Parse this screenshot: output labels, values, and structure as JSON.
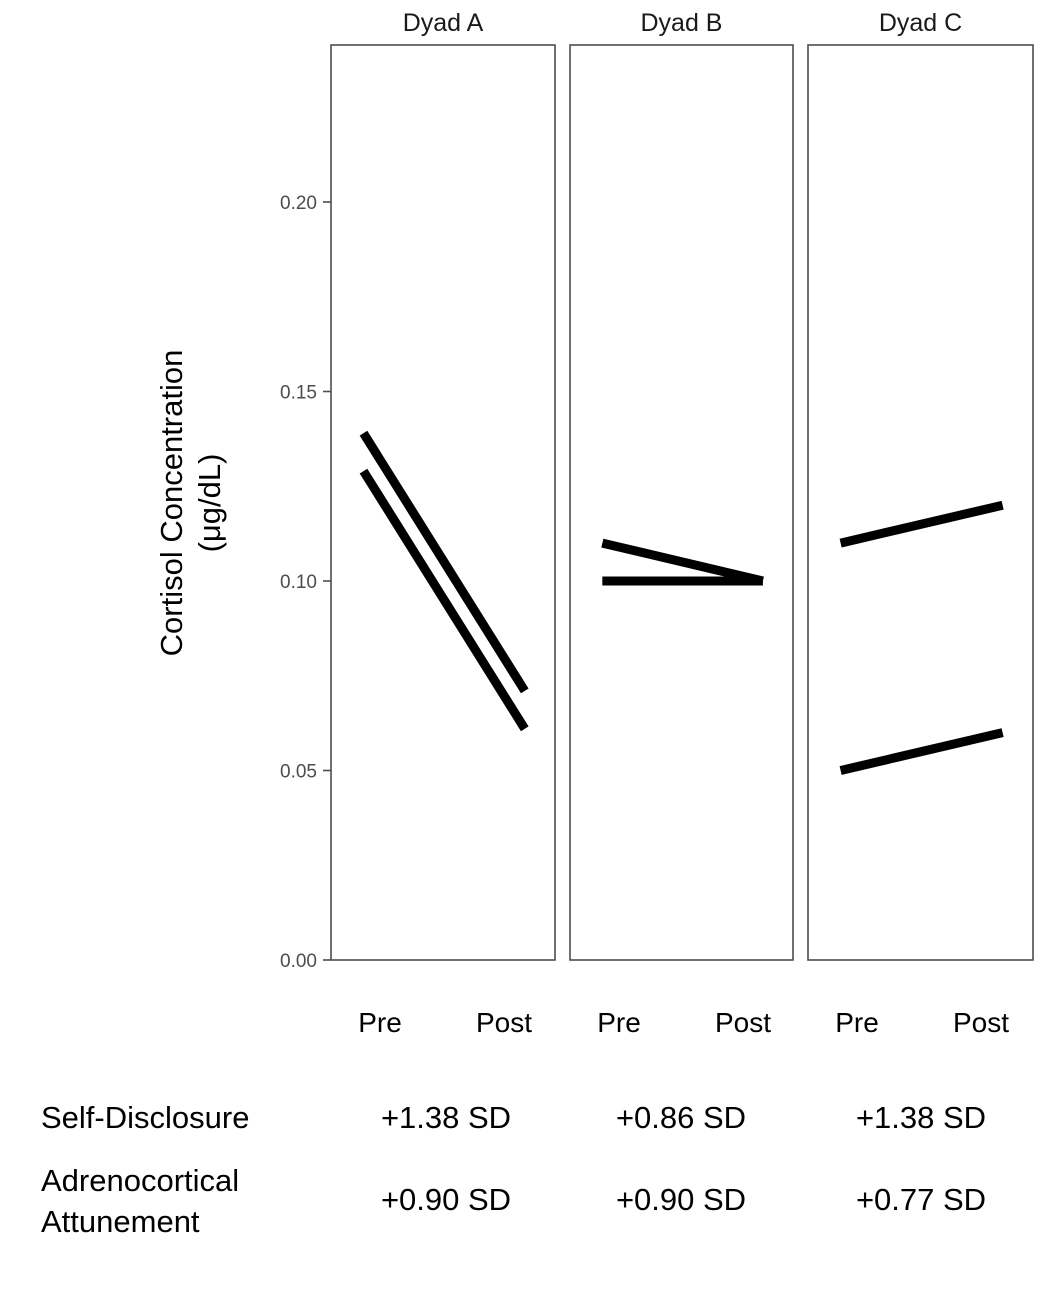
{
  "chart_data": {
    "type": "line",
    "ylabel_lines": [
      "Cortisol Concentration",
      "(μg/dL)"
    ],
    "ylim": [
      0,
      0.24
    ],
    "yticks": [
      "0.00",
      "0.05",
      "0.10",
      "0.15",
      "0.20"
    ],
    "ytick_values": [
      0,
      0.05,
      0.1,
      0.15,
      0.2
    ],
    "grid": false,
    "legend": "none",
    "x_categories": [
      "Pre",
      "Post"
    ],
    "line_color": "#000000",
    "panels": [
      {
        "title": "Dyad A",
        "series": [
          {
            "values": [
              0.139,
              0.071
            ]
          },
          {
            "values": [
              0.129,
              0.061
            ]
          }
        ]
      },
      {
        "title": "Dyad B",
        "series": [
          {
            "values": [
              0.11,
              0.1
            ]
          },
          {
            "values": [
              0.1,
              0.1
            ]
          }
        ]
      },
      {
        "title": "Dyad C",
        "series": [
          {
            "values": [
              0.11,
              0.12
            ]
          },
          {
            "values": [
              0.05,
              0.06
            ]
          }
        ]
      }
    ]
  },
  "annotations": {
    "rows": [
      {
        "label_lines": [
          "Self-Disclosure"
        ],
        "values": [
          "+1.38 SD",
          "+0.86 SD",
          "+1.38 SD"
        ]
      },
      {
        "label_lines": [
          "Adrenocortical",
          "Attunement"
        ],
        "values": [
          "+0.90 SD",
          "+0.90 SD",
          "+0.77 SD"
        ]
      }
    ]
  }
}
